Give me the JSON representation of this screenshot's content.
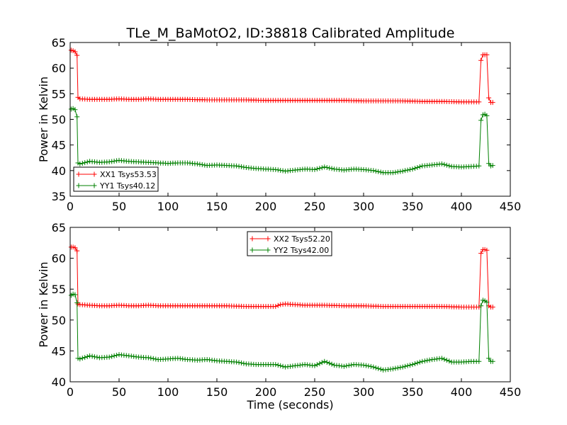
{
  "figure": {
    "title": "TLe_M_BaMotO2, ID:38818 Calibrated Amplitude"
  },
  "chart_data": [
    {
      "type": "line",
      "title": "TLe_M_BaMotO2, ID:38818 Calibrated Amplitude",
      "xlabel": "",
      "ylabel": "Power in Kelvin",
      "xlim": [
        0,
        450
      ],
      "ylim": [
        35,
        65
      ],
      "xticks": [
        0,
        50,
        100,
        150,
        200,
        250,
        300,
        350,
        400,
        450
      ],
      "yticks": [
        35,
        40,
        45,
        50,
        55,
        60,
        65
      ],
      "grid": false,
      "legend": "lower-left",
      "series": [
        {
          "name": "XX1 Tsys53.53",
          "color": "#ff0000",
          "marker": "plus",
          "x": [
            1,
            3,
            5,
            7,
            8,
            10,
            20,
            30,
            40,
            50,
            60,
            70,
            80,
            90,
            100,
            120,
            140,
            160,
            180,
            200,
            220,
            240,
            260,
            280,
            300,
            320,
            340,
            360,
            380,
            400,
            418,
            420,
            422,
            424,
            426,
            428,
            430,
            432
          ],
          "values": [
            63.5,
            63.4,
            63.2,
            62.5,
            54.3,
            54.0,
            53.9,
            53.9,
            53.9,
            54.0,
            53.9,
            53.9,
            54.0,
            53.9,
            53.9,
            53.9,
            53.8,
            53.8,
            53.8,
            53.7,
            53.7,
            53.7,
            53.7,
            53.7,
            53.6,
            53.6,
            53.6,
            53.5,
            53.5,
            53.4,
            53.4,
            61.5,
            62.6,
            62.6,
            62.6,
            54.2,
            53.3,
            53.3
          ]
        },
        {
          "name": "YY1 Tsys40.12",
          "color": "#008000",
          "marker": "plus",
          "x": [
            1,
            3,
            5,
            7,
            8,
            10,
            20,
            30,
            40,
            50,
            60,
            70,
            80,
            90,
            100,
            110,
            120,
            130,
            140,
            150,
            160,
            170,
            180,
            190,
            200,
            210,
            220,
            230,
            240,
            250,
            260,
            270,
            280,
            290,
            300,
            310,
            320,
            330,
            340,
            350,
            360,
            370,
            380,
            390,
            400,
            410,
            418,
            420,
            422,
            424,
            426,
            428,
            430,
            432
          ],
          "values": [
            52.0,
            52.1,
            51.9,
            50.5,
            41.5,
            41.3,
            41.8,
            41.6,
            41.7,
            42.0,
            41.8,
            41.7,
            41.6,
            41.5,
            41.4,
            41.5,
            41.5,
            41.3,
            41.0,
            41.1,
            41.0,
            40.9,
            40.6,
            40.4,
            40.3,
            40.2,
            39.9,
            40.1,
            40.3,
            40.2,
            40.7,
            40.3,
            40.1,
            40.3,
            40.2,
            40.0,
            39.6,
            39.6,
            39.9,
            40.3,
            40.9,
            41.1,
            41.3,
            40.8,
            40.7,
            40.8,
            40.9,
            49.8,
            50.9,
            51.0,
            50.7,
            41.4,
            40.9,
            41.0
          ]
        }
      ]
    },
    {
      "type": "line",
      "title": "",
      "xlabel": "Time (seconds)",
      "ylabel": "Power in Kelvin",
      "xlim": [
        0,
        450
      ],
      "ylim": [
        40,
        65
      ],
      "xticks": [
        0,
        50,
        100,
        150,
        200,
        250,
        300,
        350,
        400,
        450
      ],
      "yticks": [
        40,
        45,
        50,
        55,
        60,
        65
      ],
      "grid": false,
      "legend": "top-center",
      "series": [
        {
          "name": "XX2 Tsys52.20",
          "color": "#ff0000",
          "marker": "plus",
          "x": [
            1,
            3,
            5,
            7,
            8,
            10,
            20,
            30,
            40,
            50,
            60,
            70,
            80,
            90,
            100,
            120,
            140,
            160,
            180,
            200,
            210,
            215,
            220,
            240,
            260,
            280,
            300,
            320,
            340,
            360,
            380,
            400,
            418,
            420,
            422,
            424,
            426,
            428,
            430,
            432
          ],
          "values": [
            61.8,
            61.8,
            61.7,
            61.2,
            52.6,
            52.5,
            52.4,
            52.3,
            52.3,
            52.4,
            52.3,
            52.3,
            52.4,
            52.3,
            52.3,
            52.3,
            52.3,
            52.3,
            52.2,
            52.2,
            52.2,
            52.5,
            52.6,
            52.4,
            52.4,
            52.3,
            52.3,
            52.2,
            52.2,
            52.2,
            52.2,
            52.1,
            52.1,
            60.8,
            61.4,
            61.4,
            61.3,
            52.3,
            52.1,
            52.1
          ]
        },
        {
          "name": "YY2 Tsys42.00",
          "color": "#008000",
          "marker": "plus",
          "x": [
            1,
            3,
            5,
            7,
            8,
            10,
            20,
            30,
            40,
            50,
            60,
            70,
            80,
            90,
            100,
            110,
            120,
            130,
            140,
            150,
            160,
            170,
            180,
            190,
            200,
            210,
            220,
            230,
            240,
            250,
            260,
            270,
            280,
            290,
            300,
            310,
            320,
            330,
            340,
            350,
            360,
            370,
            380,
            390,
            400,
            410,
            418,
            420,
            422,
            424,
            426,
            428,
            430,
            432
          ],
          "values": [
            54.0,
            54.2,
            54.1,
            52.8,
            43.8,
            43.7,
            44.2,
            43.9,
            44.0,
            44.4,
            44.2,
            44.0,
            43.9,
            43.6,
            43.7,
            43.8,
            43.6,
            43.5,
            43.6,
            43.4,
            43.3,
            43.2,
            42.9,
            42.8,
            42.8,
            42.8,
            42.4,
            42.6,
            42.8,
            42.6,
            43.3,
            42.7,
            42.5,
            42.8,
            42.7,
            42.4,
            41.9,
            42.1,
            42.4,
            42.8,
            43.3,
            43.6,
            43.8,
            43.2,
            43.2,
            43.3,
            43.3,
            52.3,
            53.2,
            53.1,
            52.9,
            43.8,
            43.3,
            43.3
          ]
        }
      ]
    }
  ]
}
